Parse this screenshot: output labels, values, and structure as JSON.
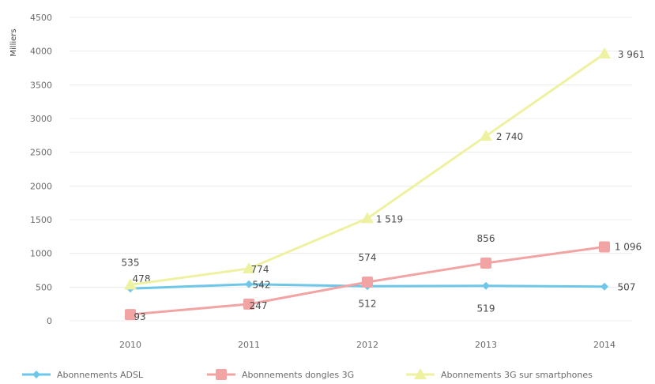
{
  "chart_data": {
    "type": "line",
    "ylabel": "Milliers",
    "ylim": [
      0,
      4500
    ],
    "yticks": [
      0,
      500,
      1000,
      1500,
      2000,
      2500,
      3000,
      3500,
      4000,
      4500
    ],
    "categories": [
      "2010",
      "2011",
      "2012",
      "2013",
      "2014"
    ],
    "grid": true,
    "legend_position": "bottom",
    "series": [
      {
        "name": "Abonnements ADSL",
        "color": "#6ec6e8",
        "marker": "diamond",
        "values": [
          478,
          542,
          512,
          519,
          507
        ],
        "labels": [
          "478",
          "542",
          "512",
          "519",
          "507"
        ]
      },
      {
        "name": "Abonnements dongles 3G",
        "color": "#f2a3a3",
        "marker": "square",
        "values": [
          93,
          247,
          574,
          856,
          1096
        ],
        "labels": [
          "93",
          "247",
          "574",
          "856",
          "1 096"
        ]
      },
      {
        "name": "Abonnements 3G sur smartphones",
        "color": "#eef2a0",
        "marker": "triangle",
        "values": [
          535,
          774,
          1519,
          2740,
          3961
        ],
        "labels": [
          "535",
          "774",
          "1 519",
          "2 740",
          "3 961"
        ]
      }
    ]
  }
}
